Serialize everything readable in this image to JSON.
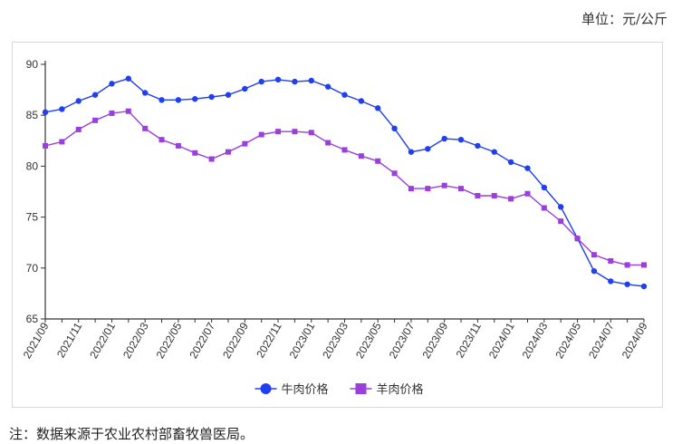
{
  "unit_label": "单位：元/公斤",
  "footnote": "注：数据来源于农业农村部畜牧兽医局。",
  "chart_data": {
    "type": "line",
    "x": [
      "2021/09",
      "2021/10",
      "2021/11",
      "2021/12",
      "2022/01",
      "2022/02",
      "2022/03",
      "2022/04",
      "2022/05",
      "2022/06",
      "2022/07",
      "2022/08",
      "2022/09",
      "2022/10",
      "2022/11",
      "2022/12",
      "2023/01",
      "2023/02",
      "2023/03",
      "2023/04",
      "2023/05",
      "2023/06",
      "2023/07",
      "2023/08",
      "2023/09",
      "2023/10",
      "2023/11",
      "2023/12",
      "2024/01",
      "2024/02",
      "2024/03",
      "2024/04",
      "2024/05",
      "2024/06",
      "2024/07",
      "2024/08",
      "2024/09"
    ],
    "x_tick_labels": [
      "2021/09",
      "2021/11",
      "2022/01",
      "2022/03",
      "2022/05",
      "2022/07",
      "2022/09",
      "2022/11",
      "2023/01",
      "2023/03",
      "2023/05",
      "2023/07",
      "2023/09",
      "2023/11",
      "2024/01",
      "2024/03",
      "2024/05",
      "2024/07",
      "2024/09"
    ],
    "y_ticks": [
      65,
      70,
      75,
      80,
      85,
      90
    ],
    "ylim": [
      65,
      90
    ],
    "grid": false,
    "legend_position": "bottom-center",
    "series": [
      {
        "name": "牛肉价格",
        "color": "#1f3ff0",
        "marker": "circle",
        "values": [
          85.3,
          85.6,
          86.4,
          87.0,
          88.1,
          88.6,
          87.2,
          86.5,
          86.5,
          86.6,
          86.8,
          87.0,
          87.6,
          88.3,
          88.5,
          88.3,
          88.4,
          87.8,
          87.0,
          86.4,
          85.7,
          83.7,
          81.4,
          81.7,
          82.7,
          82.6,
          82.0,
          81.4,
          80.4,
          79.8,
          77.9,
          76.0,
          72.9,
          69.7,
          68.7,
          68.4,
          68.2
        ]
      },
      {
        "name": "羊肉价格",
        "color": "#9b3fdc",
        "marker": "square",
        "values": [
          82.0,
          82.4,
          83.6,
          84.5,
          85.2,
          85.4,
          83.7,
          82.6,
          82.0,
          81.3,
          80.7,
          81.4,
          82.2,
          83.1,
          83.4,
          83.4,
          83.3,
          82.3,
          81.6,
          81.0,
          80.5,
          79.3,
          77.8,
          77.8,
          78.1,
          77.8,
          77.1,
          77.1,
          76.8,
          77.3,
          75.9,
          74.6,
          72.9,
          71.3,
          70.7,
          70.3,
          70.3
        ]
      }
    ]
  }
}
